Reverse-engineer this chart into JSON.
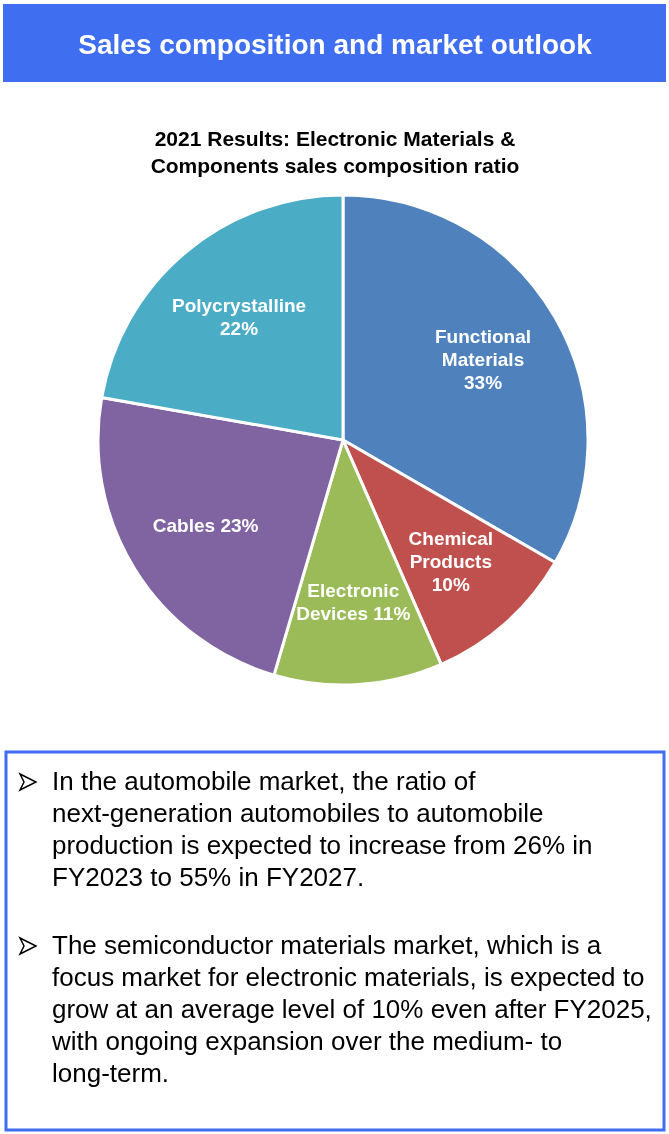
{
  "chart_data": {
    "type": "pie",
    "title": "Sales composition and market outlook",
    "subtitle": "2021 Results: Electronic Materials & Components sales composition ratio",
    "categories": [
      "Functional Materials",
      "Chemical Products",
      "Electronic Devices",
      "Cables",
      "Polycrystalline"
    ],
    "values": [
      33,
      10,
      11,
      23,
      22
    ],
    "value_labels": [
      "33%",
      "10%",
      "11%",
      "23%",
      "22%"
    ],
    "colors": [
      "#4f81bd",
      "#c0504d",
      "#9bbb59",
      "#8064a2",
      "#4bacc6"
    ],
    "annotations": [
      "In the automobile market, the ratio of next-generation automobiles to automobile production is expected to increase from 26% in FY2023 to 55% in FY2027.",
      "The semiconductor materials market, which is a focus market for electronic materials, is expected to grow at an average level of 10% even after FY2025, with ongoing expansion over the medium- to long-term."
    ]
  }
}
